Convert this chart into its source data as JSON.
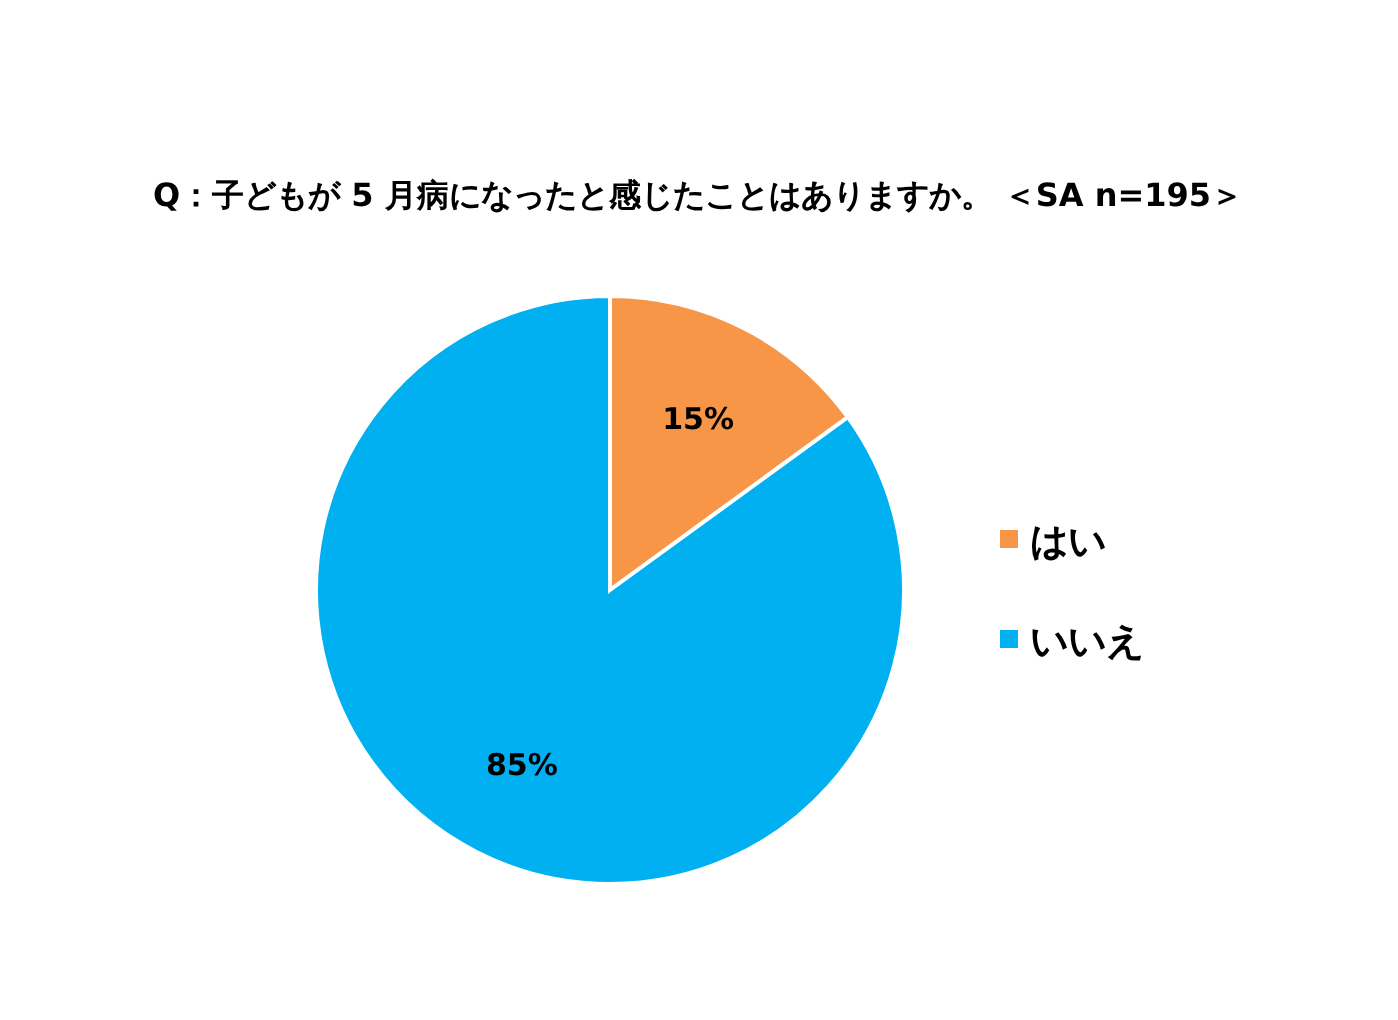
{
  "chart_data": {
    "type": "pie",
    "title": "Q：子どもが 5 月病になったと感じたことはありますか。 ＜SA n=195＞",
    "categories": [
      "はい",
      "いいえ"
    ],
    "values": [
      15,
      85
    ],
    "colors": [
      "#f79646",
      "#00b0f0"
    ],
    "value_labels": [
      "15%",
      "85%"
    ],
    "legend": "right"
  }
}
